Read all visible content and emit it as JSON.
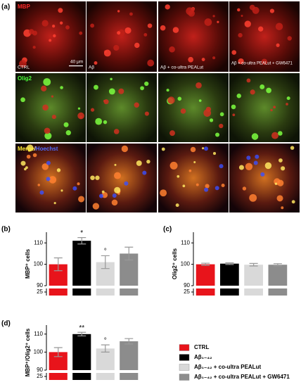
{
  "panel_labels": [
    "(a)",
    "(b)",
    "(c)",
    "(d)"
  ],
  "images": {
    "column_labels": [
      "CTRL",
      "Aβ",
      "Aβ + co-ultra PEALut",
      "Aβ + co-ultra PEALut + GW6471"
    ],
    "scale_bar": "40 μm",
    "row_labels": [
      {
        "text": "MBP",
        "color": "#ff2a2a"
      },
      {
        "text": "Olig2",
        "color": "#4cff3a"
      },
      {
        "parts": [
          {
            "text": "Merge",
            "color": "#ffee33"
          },
          {
            "text": "/",
            "color": "#ffffff"
          },
          {
            "text": "Hoechst",
            "color": "#4d6bff"
          }
        ]
      }
    ]
  },
  "legend": {
    "items": [
      {
        "label": "CTRL",
        "color": "#e8141b"
      },
      {
        "label": "Aβ₁₋₄₂",
        "color": "#000000"
      },
      {
        "label": "Aβ₁₋₄₂ + co-ultra PEALut",
        "color": "#d9d9d9"
      },
      {
        "label": "Aβ₁₋₄₂ + co-ultra PEALut + GW6471",
        "color": "#8c8c8c"
      }
    ]
  },
  "chart_data": [
    {
      "type": "bar",
      "y_label": "MBP⁺ cells",
      "categories": [
        null,
        null,
        null,
        null
      ],
      "values": [
        100,
        111,
        101,
        105
      ],
      "errors": [
        3,
        1.5,
        3,
        3
      ],
      "value_annotations": [
        null,
        "*",
        "°",
        null
      ],
      "colors": [
        "#e8141b",
        "#000000",
        "#d9d9d9",
        "#8c8c8c"
      ],
      "ylim": [
        25,
        115
      ],
      "yticks": [
        25,
        90,
        100,
        110
      ],
      "broken_axis": true
    },
    {
      "type": "bar",
      "y_label": "Olig2⁺ cells",
      "categories": [
        null,
        null,
        null,
        null
      ],
      "values": [
        100,
        100.3,
        99.8,
        99.8
      ],
      "errors": [
        0.5,
        0.4,
        0.6,
        0.5
      ],
      "value_annotations": [
        null,
        null,
        null,
        null
      ],
      "colors": [
        "#e8141b",
        "#000000",
        "#d9d9d9",
        "#8c8c8c"
      ],
      "ylim": [
        25,
        115
      ],
      "yticks": [
        25,
        90,
        100,
        110
      ],
      "broken_axis": true
    },
    {
      "type": "bar",
      "y_label": "MBP⁺/Olig2⁺ cells",
      "categories": [
        null,
        null,
        null,
        null
      ],
      "values": [
        100,
        110,
        102,
        106
      ],
      "errors": [
        2.5,
        1,
        2,
        1.5
      ],
      "value_annotations": [
        null,
        "**",
        "°",
        null
      ],
      "colors": [
        "#e8141b",
        "#000000",
        "#d9d9d9",
        "#8c8c8c"
      ],
      "ylim": [
        25,
        115
      ],
      "yticks": [
        25,
        90,
        100,
        110
      ],
      "broken_axis": true
    }
  ]
}
